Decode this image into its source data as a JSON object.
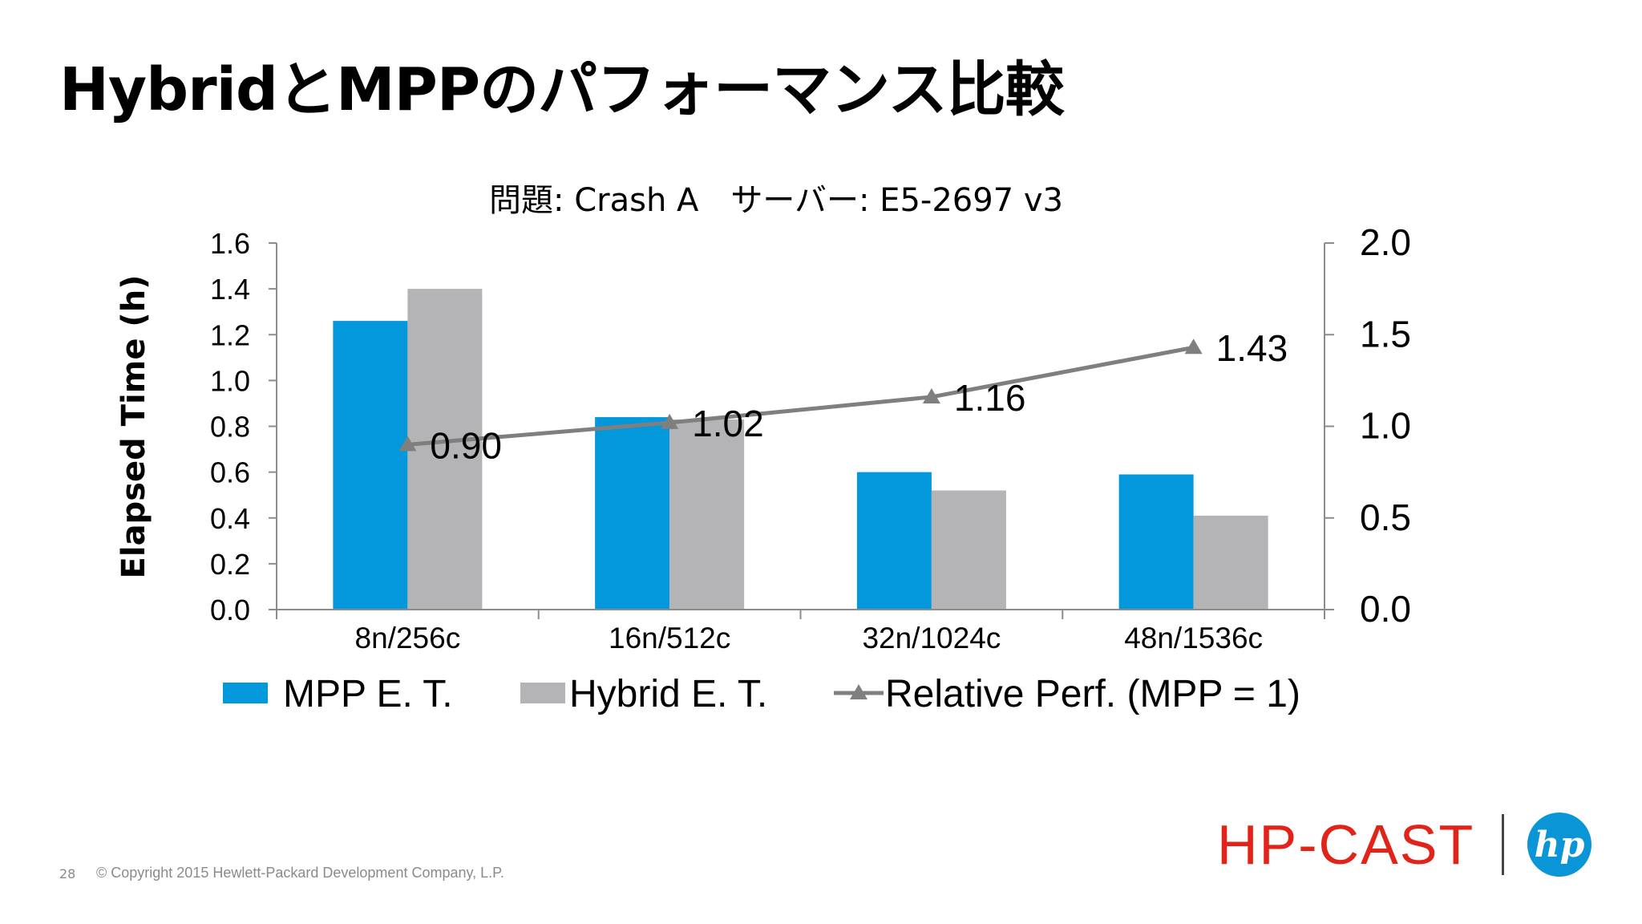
{
  "slide": {
    "title": "HybridとMPPのパフォーマンス比較",
    "page_number": "28",
    "copyright": "© Copyright 2015 Hewlett-Packard Development Company, L.P.",
    "brand": "HP-CAST",
    "logo_text": "hp"
  },
  "colors": {
    "mpp": "#0397db",
    "hybrid": "#b4b4b6",
    "line": "#7f7f7f",
    "axis": "#8c8c8c",
    "brand": "#e2231a",
    "logo": "#0a96d6"
  },
  "chart_data": {
    "type": "bar",
    "title": "問題: Crash A　サーバー: E5-2697 v3",
    "ylabel": "Elapsed Time (h)",
    "categories": [
      "8n/256c",
      "16n/512c",
      "32n/1024c",
      "48n/1536c"
    ],
    "ylim": [
      0,
      1.6
    ],
    "y_ticks": [
      "0.0",
      "0.2",
      "0.4",
      "0.6",
      "0.8",
      "1.0",
      "1.2",
      "1.4",
      "1.6"
    ],
    "y2lim": [
      0,
      2.0
    ],
    "y2_ticks": [
      "0.0",
      "0.5",
      "1.0",
      "1.5",
      "2.0"
    ],
    "grid": false,
    "legend_position": "bottom",
    "series": [
      {
        "name": "MPP E. T.",
        "type": "bar",
        "axis": "left",
        "values": [
          1.26,
          0.84,
          0.6,
          0.59
        ]
      },
      {
        "name": "Hybrid E. T.",
        "type": "bar",
        "axis": "left",
        "values": [
          1.4,
          0.83,
          0.52,
          0.41
        ]
      },
      {
        "name": "Relative Perf. (MPP = 1)",
        "type": "line",
        "axis": "right",
        "marker": "triangle",
        "values": [
          0.9,
          1.02,
          1.16,
          1.43
        ],
        "labels": [
          "0.90",
          "1.02",
          "1.16",
          "1.43"
        ]
      }
    ]
  }
}
